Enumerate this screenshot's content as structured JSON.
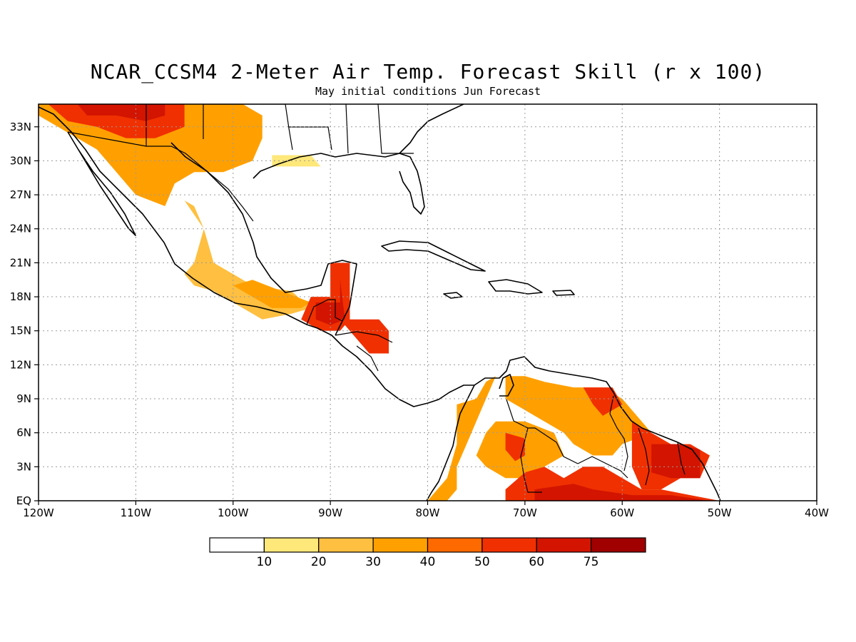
{
  "title": "NCAR_CCSM4 2-Meter Air Temp. Forecast Skill (r x 100)",
  "subtitle": "May initial conditions  Jun Forecast",
  "map": {
    "lon_range": [
      -120,
      -40
    ],
    "lat_range": [
      0,
      35
    ],
    "grid": true,
    "x_ticks": [
      {
        "lon": -120,
        "label": "120W"
      },
      {
        "lon": -110,
        "label": "110W"
      },
      {
        "lon": -100,
        "label": "100W"
      },
      {
        "lon": -90,
        "label": "90W"
      },
      {
        "lon": -80,
        "label": "80W"
      },
      {
        "lon": -70,
        "label": "70W"
      },
      {
        "lon": -60,
        "label": "60W"
      },
      {
        "lon": -50,
        "label": "50W"
      },
      {
        "lon": -40,
        "label": "40W"
      }
    ],
    "y_ticks": [
      {
        "lat": 0,
        "label": "EQ"
      },
      {
        "lat": 3,
        "label": "3N"
      },
      {
        "lat": 6,
        "label": "6N"
      },
      {
        "lat": 9,
        "label": "9N"
      },
      {
        "lat": 12,
        "label": "12N"
      },
      {
        "lat": 15,
        "label": "15N"
      },
      {
        "lat": 18,
        "label": "18N"
      },
      {
        "lat": 21,
        "label": "21N"
      },
      {
        "lat": 24,
        "label": "24N"
      },
      {
        "lat": 27,
        "label": "27N"
      },
      {
        "lat": 30,
        "label": "30N"
      },
      {
        "lat": 33,
        "label": "33N"
      }
    ]
  },
  "colorbar": {
    "colors": [
      "#ffffff",
      "#ffe87a",
      "#ffbf40",
      "#ffa000",
      "#ff6a00",
      "#f03000",
      "#d21400",
      "#a00000"
    ],
    "labels": [
      "10",
      "20",
      "30",
      "40",
      "50",
      "60",
      "75"
    ]
  },
  "skill_regions": [
    {
      "name": "sw-us",
      "level": 3,
      "lonlat": [
        [
          -120,
          35
        ],
        [
          -115,
          35
        ],
        [
          -110,
          35
        ],
        [
          -104,
          35
        ],
        [
          -99,
          35
        ],
        [
          -97,
          34
        ],
        [
          -97,
          32
        ],
        [
          -98,
          30
        ],
        [
          -101,
          29
        ],
        [
          -104,
          29
        ],
        [
          -106,
          28
        ],
        [
          -107,
          26
        ],
        [
          -110,
          27
        ],
        [
          -112,
          29
        ],
        [
          -114,
          31
        ],
        [
          -117,
          32.5
        ],
        [
          -120,
          34
        ]
      ]
    },
    {
      "name": "sw-us-core",
      "level": 5,
      "lonlat": [
        [
          -119,
          35
        ],
        [
          -110,
          35
        ],
        [
          -105,
          35
        ],
        [
          -105,
          33
        ],
        [
          -108,
          32
        ],
        [
          -111,
          32
        ],
        [
          -114,
          33
        ],
        [
          -117,
          33.5
        ]
      ]
    },
    {
      "name": "sw-us-hot",
      "level": 6,
      "lonlat": [
        [
          -116,
          35
        ],
        [
          -110,
          35
        ],
        [
          -107,
          35
        ],
        [
          -107,
          34
        ],
        [
          -109,
          33.5
        ],
        [
          -112,
          34
        ],
        [
          -115,
          34
        ]
      ]
    },
    {
      "name": "gulf-coast",
      "level": 1,
      "lonlat": [
        [
          -96,
          30.5
        ],
        [
          -92,
          30.5
        ],
        [
          -91,
          29.5
        ],
        [
          -96,
          29.5
        ]
      ]
    },
    {
      "name": "mexico-west",
      "level": 2,
      "lonlat": [
        [
          -106,
          27
        ],
        [
          -104,
          26
        ],
        [
          -103,
          24
        ],
        [
          -104,
          21
        ],
        [
          -105,
          20
        ],
        [
          -104,
          19
        ],
        [
          -102,
          18.5
        ],
        [
          -99,
          17
        ],
        [
          -97,
          16
        ],
        [
          -94,
          16.5
        ],
        [
          -92,
          17
        ],
        [
          -94,
          18.5
        ],
        [
          -98,
          19
        ],
        [
          -100,
          20
        ],
        [
          -102,
          21
        ],
        [
          -103,
          24
        ],
        [
          -105,
          26.5
        ]
      ]
    },
    {
      "name": "mexico-south",
      "level": 3,
      "lonlat": [
        [
          -100,
          19
        ],
        [
          -98,
          18
        ],
        [
          -96,
          17
        ],
        [
          -93,
          17
        ],
        [
          -92,
          17.5
        ],
        [
          -95,
          18.5
        ],
        [
          -98,
          19.5
        ]
      ]
    },
    {
      "name": "yucatan-belize",
      "level": 5,
      "lonlat": [
        [
          -92,
          18
        ],
        [
          -90,
          18
        ],
        [
          -90,
          21
        ],
        [
          -88,
          21
        ],
        [
          -88,
          18
        ],
        [
          -88,
          16
        ],
        [
          -89,
          15
        ],
        [
          -91,
          15
        ],
        [
          -93,
          16
        ]
      ]
    },
    {
      "name": "yucatan-hot",
      "level": 6,
      "lonlat": [
        [
          -91.5,
          17.5
        ],
        [
          -89,
          17.5
        ],
        [
          -89,
          19.5
        ],
        [
          -88.5,
          16
        ],
        [
          -90,
          15.5
        ],
        [
          -91.5,
          16
        ]
      ]
    },
    {
      "name": "honduras",
      "level": 5,
      "lonlat": [
        [
          -89,
          16
        ],
        [
          -85,
          16
        ],
        [
          -84,
          15
        ],
        [
          -84,
          13
        ],
        [
          -86,
          13
        ],
        [
          -87,
          14
        ],
        [
          -88,
          15
        ]
      ]
    },
    {
      "name": "colombia-west",
      "level": 3,
      "lonlat": [
        [
          -77,
          8.5
        ],
        [
          -75,
          9
        ],
        [
          -74,
          10.5
        ],
        [
          -73,
          11
        ],
        [
          -74,
          9
        ],
        [
          -75,
          7
        ],
        [
          -76,
          5
        ],
        [
          -77,
          3
        ],
        [
          -77,
          1
        ],
        [
          -78,
          0
        ],
        [
          -80,
          0
        ],
        [
          -78,
          2
        ],
        [
          -77,
          5
        ]
      ]
    },
    {
      "name": "colombia-east",
      "level": 3,
      "lonlat": [
        [
          -73,
          7
        ],
        [
          -70,
          7
        ],
        [
          -67,
          6
        ],
        [
          -66,
          4
        ],
        [
          -68,
          3
        ],
        [
          -70,
          2
        ],
        [
          -72,
          2
        ],
        [
          -74,
          3
        ],
        [
          -75,
          4
        ],
        [
          -74,
          6
        ]
      ]
    },
    {
      "name": "colombia-core",
      "level": 5,
      "lonlat": [
        [
          -72,
          6
        ],
        [
          -70,
          5.5
        ],
        [
          -70,
          4
        ],
        [
          -71,
          3.5
        ],
        [
          -72,
          4.5
        ]
      ]
    },
    {
      "name": "venezuela",
      "level": 3,
      "lonlat": [
        [
          -72,
          11
        ],
        [
          -70,
          11
        ],
        [
          -68,
          10.5
        ],
        [
          -65,
          10
        ],
        [
          -62,
          10
        ],
        [
          -60,
          9
        ],
        [
          -58,
          7
        ],
        [
          -57,
          6
        ],
        [
          -60,
          5
        ],
        [
          -61,
          4
        ],
        [
          -63,
          4
        ],
        [
          -65,
          5
        ],
        [
          -66,
          6
        ],
        [
          -68,
          7
        ],
        [
          -70,
          8
        ],
        [
          -72,
          9
        ]
      ]
    },
    {
      "name": "venezuela-east",
      "level": 5,
      "lonlat": [
        [
          -64,
          10
        ],
        [
          -61,
          10
        ],
        [
          -60,
          8.5
        ],
        [
          -62,
          7.5
        ],
        [
          -63,
          8.5
        ]
      ]
    },
    {
      "name": "guianas",
      "level": 5,
      "lonlat": [
        [
          -59,
          7
        ],
        [
          -57,
          6
        ],
        [
          -55,
          5
        ],
        [
          -53,
          5
        ],
        [
          -51,
          4
        ],
        [
          -52,
          2
        ],
        [
          -54,
          2
        ],
        [
          -56,
          1
        ],
        [
          -58,
          1
        ],
        [
          -59,
          3
        ],
        [
          -59,
          5
        ]
      ]
    },
    {
      "name": "guianas-hot",
      "level": 6,
      "lonlat": [
        [
          -57,
          5
        ],
        [
          -54,
          5
        ],
        [
          -52,
          4.5
        ],
        [
          -52,
          2
        ],
        [
          -55,
          2
        ],
        [
          -57,
          2.5
        ]
      ]
    },
    {
      "name": "amazon",
      "level": 5,
      "lonlat": [
        [
          -70,
          2.5
        ],
        [
          -68,
          3
        ],
        [
          -66,
          2
        ],
        [
          -64,
          3
        ],
        [
          -62,
          3
        ],
        [
          -60,
          2
        ],
        [
          -58,
          1
        ],
        [
          -56,
          1
        ],
        [
          -53,
          0.5
        ],
        [
          -50,
          0
        ],
        [
          -50,
          -0.5
        ],
        [
          -72,
          -0.5
        ],
        [
          -72,
          1
        ]
      ]
    },
    {
      "name": "amazon-hot",
      "level": 6,
      "lonlat": [
        [
          -69,
          1
        ],
        [
          -65,
          1.5
        ],
        [
          -63,
          1
        ],
        [
          -59,
          0.5
        ],
        [
          -55,
          0.5
        ],
        [
          -51,
          0
        ],
        [
          -69,
          0
        ]
      ]
    }
  ]
}
